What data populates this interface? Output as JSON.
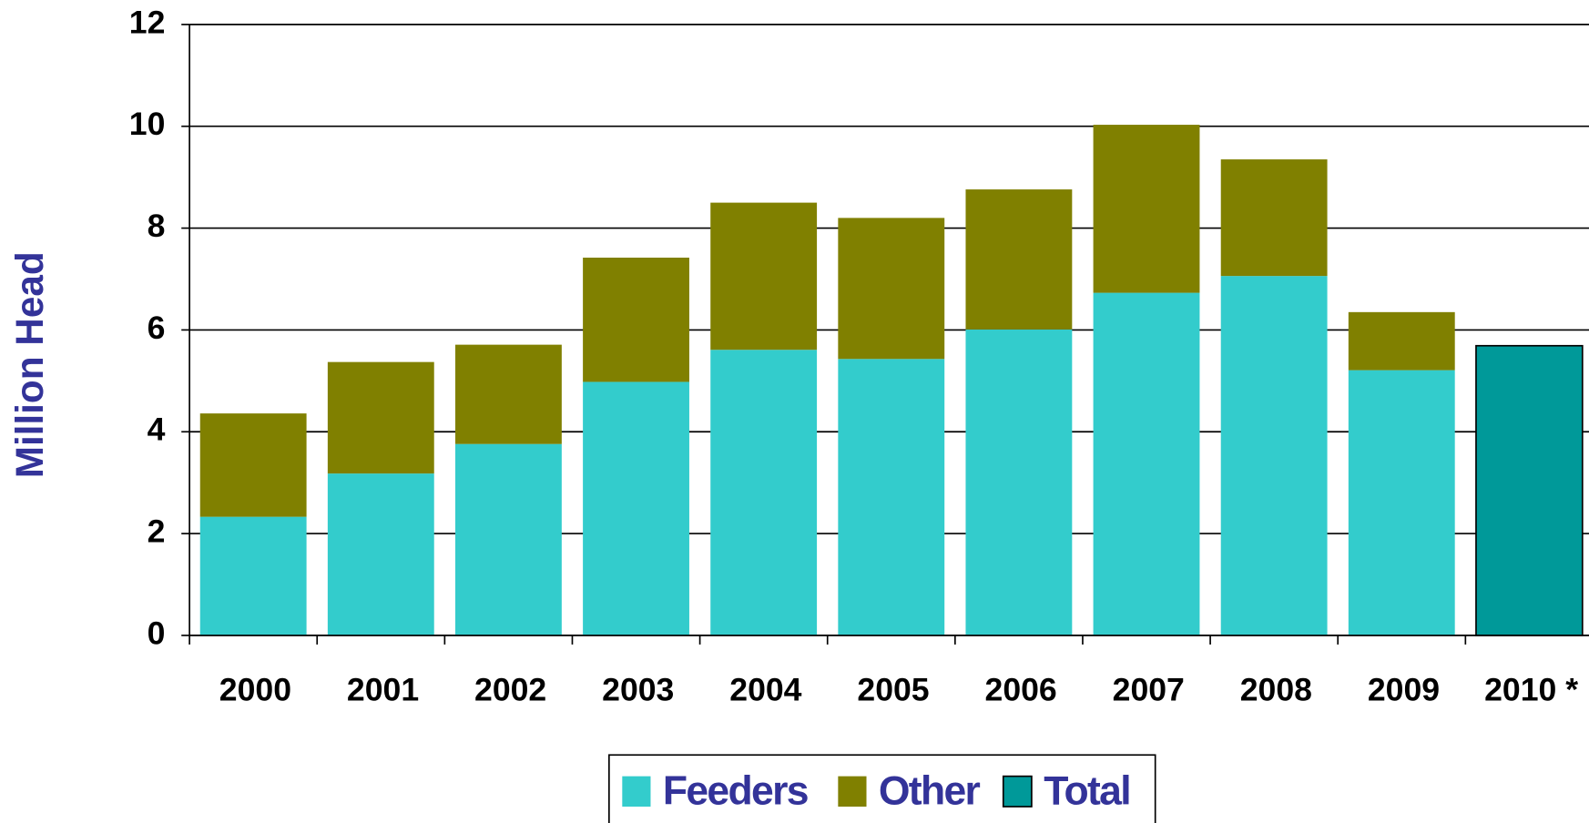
{
  "chart_data": {
    "type": "stacked_bar",
    "y_label": "Million Head",
    "categories": [
      "2000",
      "2001",
      "2002",
      "2003",
      "2004",
      "2005",
      "2006",
      "2007",
      "2008",
      "2009",
      "2010 *"
    ],
    "series": [
      {
        "name": "Feeders",
        "color": "#33cccc",
        "values": [
          2.33,
          3.18,
          3.76,
          4.98,
          5.61,
          5.43,
          6.01,
          6.73,
          7.06,
          5.21,
          null
        ]
      },
      {
        "name": "Other",
        "color": "#808000",
        "values": [
          2.03,
          2.19,
          1.95,
          2.44,
          2.89,
          2.77,
          2.75,
          3.3,
          2.29,
          1.14,
          null
        ]
      },
      {
        "name": "Total",
        "color": "#009999",
        "values": [
          null,
          null,
          null,
          null,
          null,
          null,
          null,
          null,
          null,
          null,
          5.69
        ]
      }
    ],
    "ylim": [
      0,
      12
    ],
    "yticks": [
      0,
      2,
      4,
      6,
      8,
      10,
      12
    ],
    "grid": true,
    "legend": "bottom"
  }
}
